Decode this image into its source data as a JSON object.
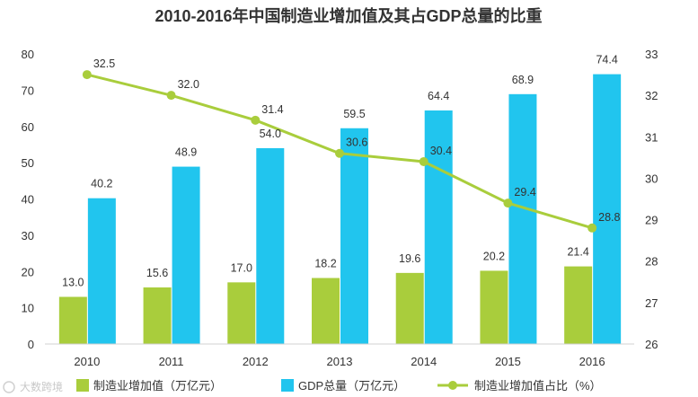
{
  "chart_data": {
    "type": "bar",
    "title": "2010-2016年中国制造业增加值及其占GDP总量的比重",
    "categories": [
      "2010",
      "2011",
      "2012",
      "2013",
      "2014",
      "2015",
      "2016"
    ],
    "series": [
      {
        "name": "制造业增加值（万亿元）",
        "kind": "bar",
        "axis": "left",
        "color": "#a9cd3c",
        "values": [
          13.0,
          15.6,
          17.0,
          18.2,
          19.6,
          20.2,
          21.4
        ],
        "labels": [
          "13.0",
          "15.6",
          "17.0",
          "18.2",
          "19.6",
          "20.2",
          "21.4"
        ]
      },
      {
        "name": "GDP总量（万亿元）",
        "kind": "bar",
        "axis": "left",
        "color": "#21c5ee",
        "values": [
          40.2,
          48.9,
          54.0,
          59.5,
          64.4,
          68.9,
          74.4
        ],
        "labels": [
          "40.2",
          "48.9",
          "54.0",
          "59.5",
          "64.4",
          "68.9",
          "74.4"
        ]
      },
      {
        "name": "制造业增加值占比（%）",
        "kind": "line",
        "axis": "right",
        "color": "#a9cd3c",
        "values": [
          32.5,
          32.0,
          31.4,
          30.6,
          30.4,
          29.4,
          28.8
        ],
        "labels": [
          "32.5",
          "32.0",
          "31.4",
          "30.6",
          "30.4",
          "29.4",
          "28.8"
        ]
      }
    ],
    "y_left": {
      "min": 0,
      "max": 80,
      "ticks": [
        "0",
        "10",
        "20",
        "30",
        "40",
        "50",
        "60",
        "70",
        "80"
      ]
    },
    "y_right": {
      "min": 26,
      "max": 33,
      "ticks": [
        "26",
        "27",
        "28",
        "29",
        "30",
        "31",
        "32",
        "33"
      ]
    },
    "grid": false,
    "legend_position": "bottom"
  },
  "watermark": {
    "text": "大数跨境"
  }
}
